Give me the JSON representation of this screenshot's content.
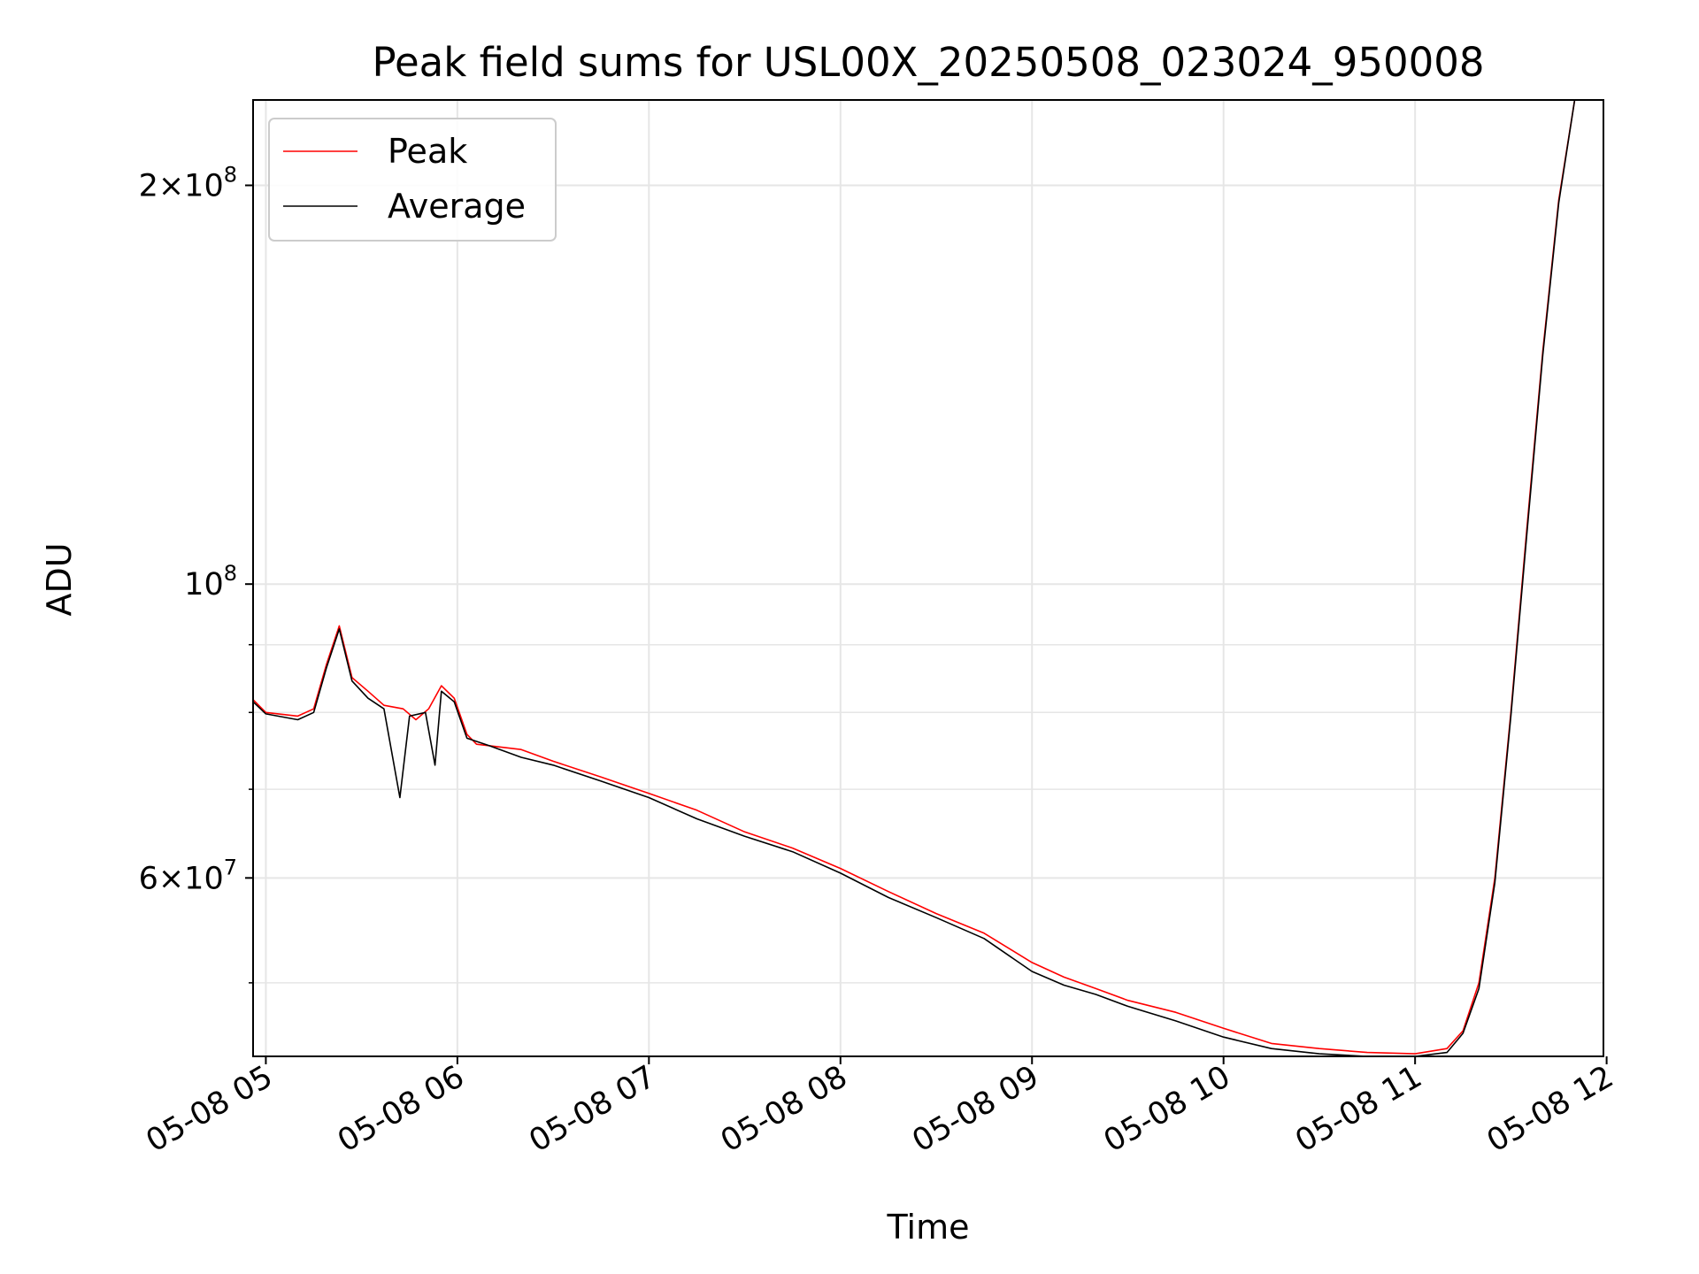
{
  "chart_data": {
    "type": "line",
    "title": "Peak field sums for USL00X_20250508_023024_950008",
    "xlabel": "Time",
    "ylabel": "ADU",
    "x_scale": "time",
    "y_scale": "log",
    "xlim": [
      "2025-05-08T04:56",
      "2025-05-08T11:59"
    ],
    "ylim": [
      44000000,
      232000000
    ],
    "x_ticks": [
      {
        "t": "2025-05-08T05:00",
        "label": "05-08 05"
      },
      {
        "t": "2025-05-08T06:00",
        "label": "05-08 06"
      },
      {
        "t": "2025-05-08T07:00",
        "label": "05-08 07"
      },
      {
        "t": "2025-05-08T08:00",
        "label": "05-08 08"
      },
      {
        "t": "2025-05-08T09:00",
        "label": "05-08 09"
      },
      {
        "t": "2025-05-08T10:00",
        "label": "05-08 10"
      },
      {
        "t": "2025-05-08T11:00",
        "label": "05-08 11"
      },
      {
        "t": "2025-05-08T12:00",
        "label": "05-08 12"
      }
    ],
    "y_major_ticks": [
      {
        "value": 60000000,
        "mantissa": "6",
        "exponent": "7"
      },
      {
        "value": 100000000,
        "mantissa": "",
        "exponent": "8"
      },
      {
        "value": 200000000,
        "mantissa": "2",
        "exponent": "8"
      }
    ],
    "y_minor_ticks": [
      50000000,
      70000000,
      80000000,
      90000000
    ],
    "grid": true,
    "legend": {
      "position": "upper-left",
      "entries": [
        "Peak",
        "Average"
      ]
    },
    "series": [
      {
        "name": "Peak",
        "color": "#ff0000",
        "points": [
          [
            "04:56",
            81800000
          ],
          [
            "05:00",
            80000000
          ],
          [
            "05:10",
            79500000
          ],
          [
            "05:15",
            80500000
          ],
          [
            "05:19",
            87000000
          ],
          [
            "05:23",
            93000000
          ],
          [
            "05:27",
            85000000
          ],
          [
            "05:32",
            83000000
          ],
          [
            "05:37",
            81000000
          ],
          [
            "05:43",
            80500000
          ],
          [
            "05:47",
            79000000
          ],
          [
            "05:51",
            80500000
          ],
          [
            "05:55",
            83800000
          ],
          [
            "05:59",
            82000000
          ],
          [
            "06:03",
            77000000
          ],
          [
            "06:06",
            75700000
          ],
          [
            "06:20",
            75000000
          ],
          [
            "06:30",
            73500000
          ],
          [
            "06:45",
            71500000
          ],
          [
            "07:00",
            69500000
          ],
          [
            "07:15",
            67500000
          ],
          [
            "07:30",
            65000000
          ],
          [
            "07:45",
            63200000
          ],
          [
            "08:00",
            61000000
          ],
          [
            "08:15",
            58600000
          ],
          [
            "08:30",
            56400000
          ],
          [
            "08:45",
            54500000
          ],
          [
            "09:00",
            51800000
          ],
          [
            "09:10",
            50500000
          ],
          [
            "09:20",
            49500000
          ],
          [
            "09:30",
            48500000
          ],
          [
            "09:45",
            47500000
          ],
          [
            "10:00",
            46200000
          ],
          [
            "10:15",
            45000000
          ],
          [
            "10:30",
            44600000
          ],
          [
            "10:45",
            44300000
          ],
          [
            "11:00",
            44200000
          ],
          [
            "11:10",
            44600000
          ],
          [
            "11:15",
            46000000
          ],
          [
            "11:20",
            50000000
          ],
          [
            "11:25",
            60000000
          ],
          [
            "11:30",
            80000000
          ],
          [
            "11:35",
            110000000
          ],
          [
            "11:40",
            150000000
          ],
          [
            "11:45",
            195000000
          ],
          [
            "11:50",
            232000000
          ]
        ]
      },
      {
        "name": "Average",
        "color": "#000000",
        "points": [
          [
            "04:56",
            81500000
          ],
          [
            "05:00",
            79800000
          ],
          [
            "05:10",
            79000000
          ],
          [
            "05:15",
            80000000
          ],
          [
            "05:19",
            86500000
          ],
          [
            "05:23",
            92500000
          ],
          [
            "05:27",
            84500000
          ],
          [
            "05:32",
            82000000
          ],
          [
            "05:37",
            80500000
          ],
          [
            "05:42",
            69000000
          ],
          [
            "05:45",
            79500000
          ],
          [
            "05:50",
            80000000
          ],
          [
            "05:53",
            73000000
          ],
          [
            "05:55",
            83000000
          ],
          [
            "05:59",
            81500000
          ],
          [
            "06:03",
            76500000
          ],
          [
            "06:10",
            75500000
          ],
          [
            "06:20",
            74000000
          ],
          [
            "06:30",
            73000000
          ],
          [
            "06:45",
            71000000
          ],
          [
            "07:00",
            69000000
          ],
          [
            "07:15",
            66500000
          ],
          [
            "07:30",
            64500000
          ],
          [
            "07:45",
            62800000
          ],
          [
            "08:00",
            60500000
          ],
          [
            "08:15",
            58000000
          ],
          [
            "08:30",
            56000000
          ],
          [
            "08:45",
            54000000
          ],
          [
            "09:00",
            51000000
          ],
          [
            "09:10",
            49800000
          ],
          [
            "09:20",
            49000000
          ],
          [
            "09:30",
            48000000
          ],
          [
            "09:45",
            46800000
          ],
          [
            "10:00",
            45500000
          ],
          [
            "10:15",
            44600000
          ],
          [
            "10:30",
            44200000
          ],
          [
            "10:45",
            44000000
          ],
          [
            "11:00",
            44000000
          ],
          [
            "11:10",
            44300000
          ],
          [
            "11:15",
            45800000
          ],
          [
            "11:20",
            49500000
          ],
          [
            "11:25",
            59500000
          ],
          [
            "11:30",
            79500000
          ],
          [
            "11:35",
            109000000
          ],
          [
            "11:40",
            149000000
          ],
          [
            "11:45",
            194000000
          ],
          [
            "11:50",
            232000000
          ]
        ]
      }
    ]
  }
}
